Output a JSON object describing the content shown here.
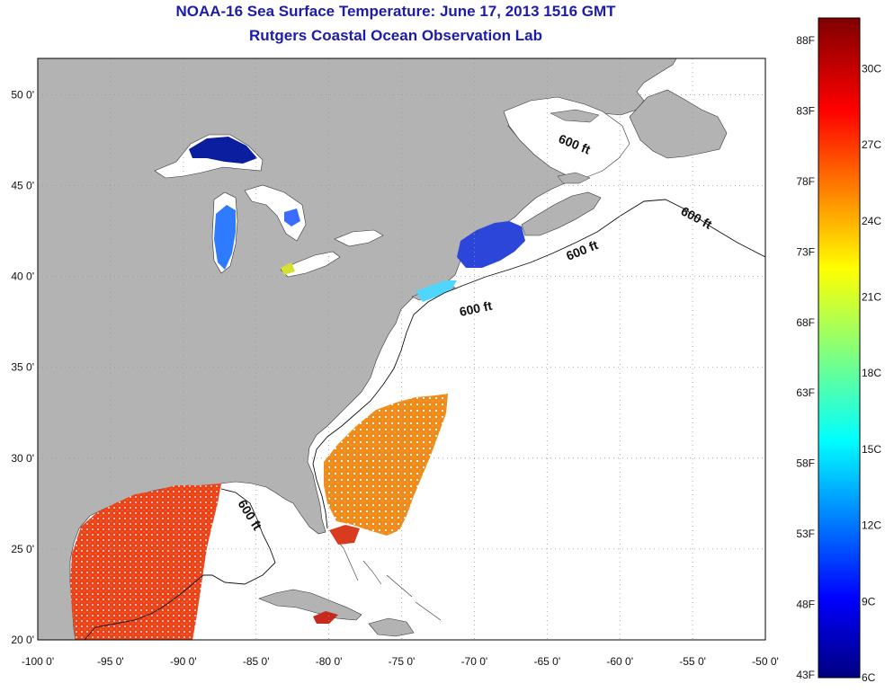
{
  "title": {
    "line1": "NOAA-16 Sea Surface Temperature:  June 17, 2013 1516 GMT",
    "line2": "Rutgers Coastal Ocean Observation Lab"
  },
  "map": {
    "lon_range": [
      -100,
      -50
    ],
    "lat_range": [
      20,
      52
    ],
    "x_ticks": [
      "-100 0'",
      "-95 0'",
      "-90 0'",
      "-85 0'",
      "-80 0'",
      "-75 0'",
      "-70 0'",
      "-65 0'",
      "-60 0'",
      "-55 0'",
      "-50 0'"
    ],
    "y_ticks": [
      "20 0'",
      "25 0'",
      "30 0'",
      "35 0'",
      "40 0'",
      "45 0'",
      "50 0'"
    ],
    "grid": "dotted",
    "contour_labels": [
      "600 ft",
      "600 ft",
      "600 ft",
      "600 ft",
      "600 ft"
    ],
    "colors": {
      "land": "#b3b3b3",
      "ocean_no_data": "#ffffff",
      "grid": "#999999"
    }
  },
  "colorbar": {
    "fahrenheit_labels": [
      "88F",
      "83F",
      "78F",
      "73F",
      "68F",
      "63F",
      "58F",
      "53F",
      "48F",
      "43F"
    ],
    "celsius_labels": [
      "30C",
      "27C",
      "24C",
      "21C",
      "18C",
      "15C",
      "12C",
      "9C",
      "6C"
    ],
    "range_c": [
      6,
      32
    ],
    "colormap": "jet"
  }
}
